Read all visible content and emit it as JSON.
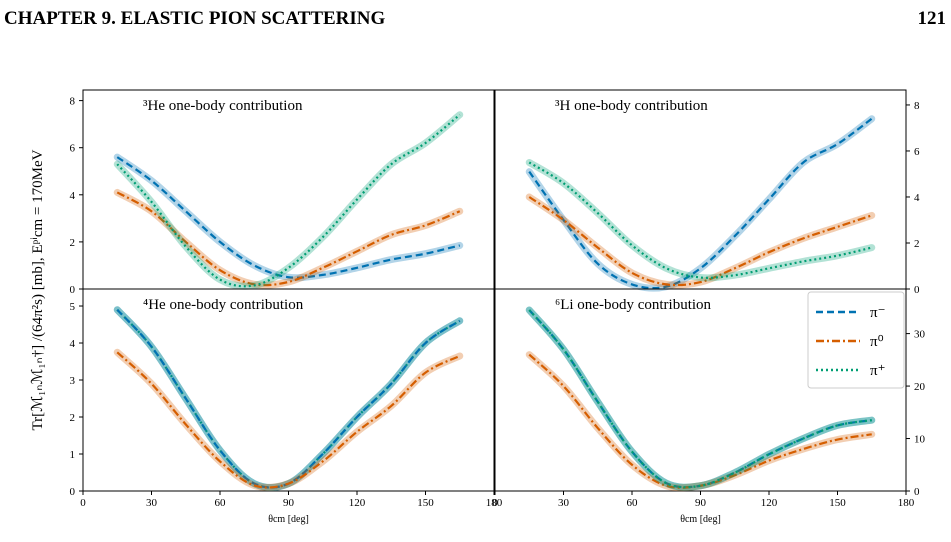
{
  "header": {
    "title": "CHAPTER 9.  ELASTIC PION SCATTERING",
    "page": "121"
  },
  "y_label": "Tr[ℳ₁ₙℳ₁ₙ†] /(64π²s) [mb],   Eᵖⁱcm = 170MeV",
  "chart_data": [
    {
      "type": "line",
      "title": "³He one-body contribution",
      "y_axis_side": "left",
      "x": [
        15,
        30,
        45,
        60,
        75,
        90,
        105,
        120,
        135,
        150,
        165
      ],
      "xlim": [
        0,
        180
      ],
      "ylim": [
        0,
        8.45
      ],
      "yticks": [
        0,
        2,
        4,
        6,
        8
      ],
      "series": [
        {
          "color": "#0072b2",
          "style": "dashed",
          "values": [
            5.6,
            4.6,
            3.3,
            2.0,
            1.0,
            0.5,
            0.6,
            0.9,
            1.25,
            1.5,
            1.85
          ]
        },
        {
          "color": "#d55e00",
          "style": "dashdot",
          "values": [
            4.1,
            3.3,
            2.0,
            0.8,
            0.2,
            0.3,
            0.9,
            1.6,
            2.3,
            2.7,
            3.3
          ]
        },
        {
          "color": "#009e73",
          "style": "dotted",
          "values": [
            5.3,
            3.7,
            1.8,
            0.4,
            0.15,
            0.9,
            2.2,
            3.8,
            5.3,
            6.2,
            7.4
          ]
        }
      ]
    },
    {
      "type": "line",
      "title": "³H one-body contribution",
      "y_axis_side": "right",
      "x": [
        15,
        30,
        45,
        60,
        75,
        90,
        105,
        120,
        135,
        150,
        165
      ],
      "xlim": [
        0,
        180
      ],
      "ylim": [
        0,
        8.65
      ],
      "yticks": [
        0,
        2,
        4,
        6,
        8
      ],
      "series": [
        {
          "color": "#0072b2",
          "style": "dashed",
          "values": [
            5.1,
            3.0,
            1.1,
            0.2,
            0.1,
            0.9,
            2.3,
            3.9,
            5.5,
            6.3,
            7.4
          ]
        },
        {
          "color": "#d55e00",
          "style": "dashdot",
          "values": [
            4.0,
            3.0,
            1.8,
            0.7,
            0.2,
            0.3,
            0.9,
            1.6,
            2.2,
            2.7,
            3.2
          ]
        },
        {
          "color": "#009e73",
          "style": "dotted",
          "values": [
            5.5,
            4.6,
            3.3,
            1.9,
            0.9,
            0.5,
            0.6,
            0.9,
            1.2,
            1.45,
            1.8
          ]
        }
      ]
    },
    {
      "type": "line",
      "title": "⁴He one-body contribution",
      "y_axis_side": "left",
      "x": [
        15,
        30,
        45,
        60,
        75,
        90,
        105,
        120,
        135,
        150,
        165
      ],
      "xlim": [
        0,
        180
      ],
      "xticks": [
        0,
        30,
        60,
        90,
        120,
        150,
        180
      ],
      "xlabel": "θcm [deg]",
      "ylim": [
        0,
        5.46
      ],
      "yticks": [
        0,
        1,
        2,
        3,
        4,
        5
      ],
      "series": [
        {
          "color": "#009e73",
          "style": "dotted",
          "values": [
            4.9,
            3.9,
            2.5,
            1.1,
            0.2,
            0.2,
            1.0,
            2.0,
            2.9,
            4.0,
            4.6
          ]
        },
        {
          "color": "#0072b2",
          "style": "dashed",
          "values": [
            4.9,
            3.9,
            2.5,
            1.1,
            0.2,
            0.2,
            1.0,
            2.0,
            2.9,
            4.0,
            4.6
          ]
        },
        {
          "color": "#d55e00",
          "style": "dashdot",
          "values": [
            3.75,
            2.9,
            1.8,
            0.8,
            0.15,
            0.2,
            0.8,
            1.6,
            2.3,
            3.2,
            3.65
          ]
        }
      ]
    },
    {
      "type": "line",
      "title": "⁶Li one-body contribution",
      "y_axis_side": "right",
      "legend": "upper right",
      "x": [
        15,
        30,
        45,
        60,
        75,
        90,
        105,
        120,
        135,
        150,
        165
      ],
      "xlim": [
        0,
        180
      ],
      "xticks": [
        0,
        30,
        60,
        90,
        120,
        150,
        180
      ],
      "xlabel": "θcm [deg]",
      "ylim": [
        0,
        38.5
      ],
      "yticks": [
        0,
        10,
        20,
        30
      ],
      "series": [
        {
          "name": "π⁻",
          "color": "#0072b2",
          "style": "dashed",
          "values": [
            34.5,
            27,
            17,
            7.5,
            1.5,
            1,
            3.5,
            7,
            10,
            12.5,
            13.5
          ]
        },
        {
          "name": "π⁰",
          "color": "#d55e00",
          "style": "dashdot",
          "values": [
            26,
            20,
            12,
            5,
            1,
            1,
            3,
            5.8,
            8,
            9.8,
            10.8
          ]
        },
        {
          "name": "π⁺",
          "color": "#009e73",
          "style": "dotted",
          "values": [
            34.5,
            27,
            17,
            7.5,
            1.5,
            1,
            3.5,
            7,
            10,
            12.5,
            13.5
          ]
        }
      ]
    }
  ]
}
